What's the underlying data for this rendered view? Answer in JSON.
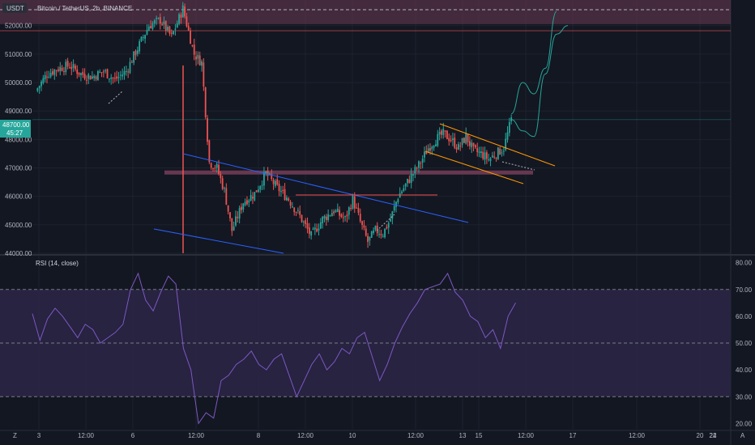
{
  "legend": {
    "currency": "USDT",
    "symbol_line": "Bitcoin / TetherUS, 2h, BINANCE",
    "rsi_label": "RSI (14, close)"
  },
  "price_badge": {
    "value": "48700.00",
    "countdown": "45:27"
  },
  "corner": {
    "left": "Z",
    "right": "A"
  },
  "colors": {
    "background": "#131722",
    "grid": "#1e222d",
    "up": "#26a69a",
    "down": "#ef5350",
    "resistance_zone": "#6b3a52",
    "channel_blue": "#2962ff",
    "flag_orange": "#ff9800",
    "projection": "#26a69a",
    "rsi_line": "#7e57c2",
    "rsi_band": "#2a2545"
  },
  "chart_data": [
    {
      "type": "candlestick",
      "title": "Bitcoin / TetherUS, 2h, BINANCE",
      "x_ticks": [
        "3",
        "12:00",
        "6",
        "12:00",
        "8",
        "12:00",
        "10",
        "12:00",
        "13",
        "15",
        "12:00",
        "17",
        "12:00",
        "20",
        "22",
        "24"
      ],
      "y_ticks": [
        44000,
        45000,
        46000,
        47000,
        48000,
        49000,
        50000,
        51000,
        52000
      ],
      "ylim": [
        44000,
        52900
      ],
      "last_price": 48700.0,
      "close_path": [
        [
          0,
          49700
        ],
        [
          6,
          50300
        ],
        [
          12,
          50500
        ],
        [
          18,
          50600
        ],
        [
          24,
          50300
        ],
        [
          30,
          50200
        ],
        [
          36,
          50400
        ],
        [
          42,
          50100
        ],
        [
          48,
          50400
        ],
        [
          54,
          51200
        ],
        [
          60,
          52000
        ],
        [
          66,
          52200
        ],
        [
          72,
          51600
        ],
        [
          78,
          52600
        ],
        [
          84,
          51000
        ],
        [
          88,
          50700
        ],
        [
          92,
          47200
        ],
        [
          96,
          47000
        ],
        [
          100,
          46200
        ],
        [
          104,
          44800
        ],
        [
          110,
          45800
        ],
        [
          116,
          46100
        ],
        [
          122,
          46800
        ],
        [
          128,
          46300
        ],
        [
          134,
          45900
        ],
        [
          140,
          45300
        ],
        [
          146,
          44600
        ],
        [
          152,
          45200
        ],
        [
          158,
          45500
        ],
        [
          164,
          45200
        ],
        [
          168,
          45900
        ],
        [
          172,
          45100
        ],
        [
          176,
          44400
        ],
        [
          180,
          44800
        ],
        [
          184,
          44700
        ],
        [
          188,
          45200
        ],
        [
          192,
          46000
        ],
        [
          196,
          46400
        ],
        [
          200,
          46800
        ],
        [
          204,
          47200
        ],
        [
          208,
          47700
        ],
        [
          212,
          48000
        ],
        [
          216,
          48200
        ],
        [
          220,
          48000
        ],
        [
          224,
          47700
        ],
        [
          228,
          48100
        ],
        [
          232,
          47600
        ],
        [
          236,
          47500
        ],
        [
          240,
          47300
        ],
        [
          244,
          47500
        ],
        [
          248,
          47700
        ],
        [
          252,
          48700
        ]
      ],
      "resistance_zone": [
        52050,
        52900
      ],
      "support_zone": [
        46750,
        46880
      ],
      "projection_scenarios": [
        [
          [
            252,
            48900
          ],
          [
            258,
            50000
          ],
          [
            264,
            49600
          ],
          [
            270,
            50500
          ],
          [
            276,
            52500
          ]
        ],
        [
          [
            252,
            48700
          ],
          [
            258,
            48300
          ],
          [
            264,
            48100
          ],
          [
            270,
            50300
          ],
          [
            276,
            51700
          ],
          [
            282,
            52000
          ]
        ]
      ]
    },
    {
      "type": "line",
      "title": "RSI (14, close)",
      "y_ticks": [
        20,
        30,
        40,
        50,
        60,
        70,
        80
      ],
      "ylim": [
        18,
        82
      ],
      "bands": [
        30,
        50,
        70
      ],
      "x": [
        0,
        4,
        8,
        12,
        16,
        20,
        24,
        28,
        32,
        36,
        40,
        44,
        48,
        52,
        56,
        60,
        64,
        68,
        72,
        76,
        80,
        84,
        88,
        92,
        96,
        100,
        104,
        108,
        112,
        116,
        120,
        124,
        128,
        132,
        136,
        140,
        144,
        148,
        152,
        156,
        160,
        164,
        168,
        172,
        176,
        180,
        184,
        188,
        192,
        196,
        200,
        204,
        208,
        212,
        216,
        220,
        224,
        228,
        232,
        236,
        240,
        244,
        248,
        252,
        256
      ],
      "values": [
        61,
        51,
        59,
        63,
        60,
        56,
        52,
        57,
        55,
        50,
        52,
        54,
        57,
        70,
        76,
        66,
        62,
        69,
        75,
        72,
        48,
        40,
        20,
        24,
        22,
        36,
        38,
        42,
        44,
        47,
        42,
        40,
        44,
        46,
        38,
        30,
        36,
        42,
        46,
        40,
        43,
        48,
        46,
        52,
        54,
        45,
        36,
        42,
        50,
        56,
        61,
        65,
        70,
        71,
        72,
        76,
        69,
        66,
        60,
        58,
        52,
        55,
        48,
        60,
        65
      ]
    }
  ]
}
